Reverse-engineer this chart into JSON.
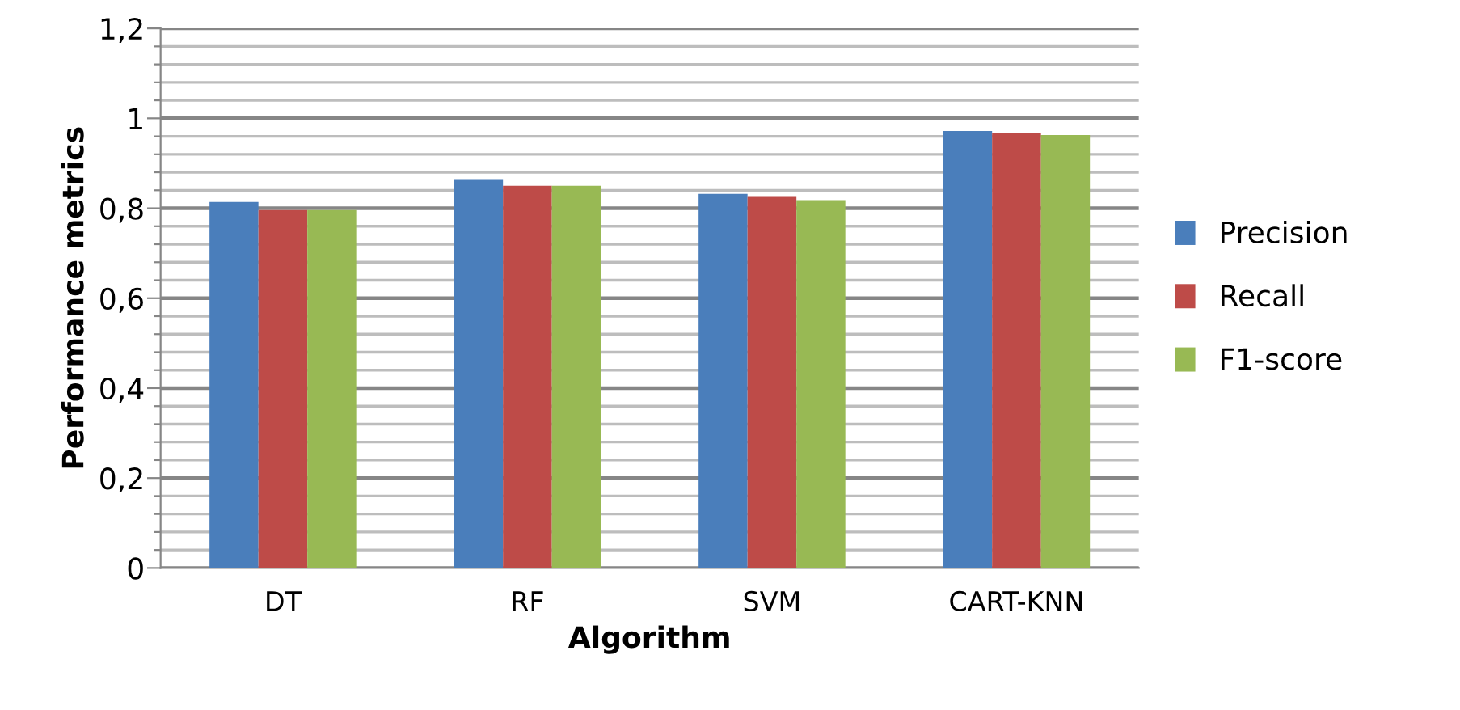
{
  "chart_data": {
    "type": "bar",
    "xlabel": "Algorithm",
    "ylabel": "Performance metrics",
    "categories": [
      "DT",
      "RF",
      "SVM",
      "CART-KNN"
    ],
    "series": [
      {
        "name": "Precision",
        "color": "#4a7ebb",
        "values": [
          0.814,
          0.865,
          0.832,
          0.972
        ]
      },
      {
        "name": "Recall",
        "color": "#be4b48",
        "values": [
          0.796,
          0.85,
          0.827,
          0.967
        ]
      },
      {
        "name": "F1-score",
        "color": "#98b954",
        "values": [
          0.796,
          0.85,
          0.818,
          0.963
        ]
      }
    ],
    "ylim": [
      0,
      1.2
    ],
    "yticks": [
      {
        "value": 0,
        "label": "0"
      },
      {
        "value": 0.04,
        "label": null
      },
      {
        "value": 0.08,
        "label": null
      },
      {
        "value": 0.12,
        "label": null
      },
      {
        "value": 0.16,
        "label": null
      },
      {
        "value": 0.2,
        "label": "0,2"
      },
      {
        "value": 0.24,
        "label": null
      },
      {
        "value": 0.28,
        "label": null
      },
      {
        "value": 0.32,
        "label": null
      },
      {
        "value": 0.36,
        "label": null
      },
      {
        "value": 0.4,
        "label": "0,4"
      },
      {
        "value": 0.44,
        "label": null
      },
      {
        "value": 0.48,
        "label": null
      },
      {
        "value": 0.52,
        "label": null
      },
      {
        "value": 0.56,
        "label": null
      },
      {
        "value": 0.6,
        "label": "0,6"
      },
      {
        "value": 0.64,
        "label": null
      },
      {
        "value": 0.68,
        "label": null
      },
      {
        "value": 0.72,
        "label": null
      },
      {
        "value": 0.76,
        "label": null
      },
      {
        "value": 0.8,
        "label": "0,8"
      },
      {
        "value": 0.84,
        "label": null
      },
      {
        "value": 0.88,
        "label": null
      },
      {
        "value": 0.92,
        "label": null
      },
      {
        "value": 0.96,
        "label": null
      },
      {
        "value": 1,
        "label": "1"
      },
      {
        "value": 1.04,
        "label": null
      },
      {
        "value": 1.08,
        "label": null
      },
      {
        "value": 1.12,
        "label": null
      },
      {
        "value": 1.16,
        "label": null
      },
      {
        "value": 1.2,
        "label": "1,2"
      }
    ],
    "grid": "y",
    "legend": "right"
  }
}
